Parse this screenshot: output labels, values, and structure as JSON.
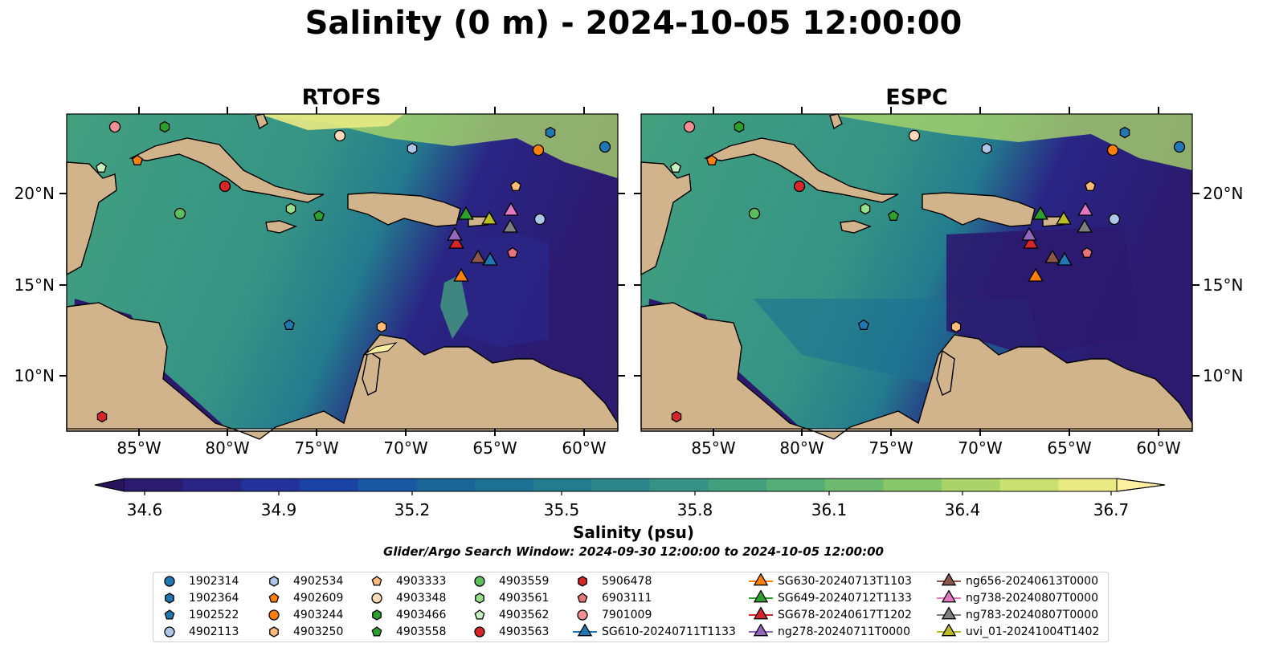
{
  "title": "Salinity (0 m) - 2024-10-05 12:00:00",
  "panels": [
    {
      "title": "RTOFS"
    },
    {
      "title": "ESPC"
    }
  ],
  "axes": {
    "x_ticks": [
      "85°W",
      "80°W",
      "75°W",
      "70°W",
      "65°W",
      "60°W"
    ],
    "y_ticks": [
      "20°N",
      "15°N",
      "10°N"
    ]
  },
  "colorbar": {
    "label": "Salinity (psu)",
    "ticks": [
      "34.6",
      "34.9",
      "35.2",
      "35.5",
      "35.8",
      "36.1",
      "36.4",
      "36.7"
    ],
    "colors": [
      "#2b1a6e",
      "#2a2585",
      "#23329a",
      "#1b43a6",
      "#1857a2",
      "#196597",
      "#1d7193",
      "#237b8e",
      "#2b8789",
      "#359385",
      "#43a07f",
      "#55ad77",
      "#6dba70",
      "#8ac76a",
      "#aad46a",
      "#cbe070",
      "#e8ea83"
    ],
    "min_color": "#27145c",
    "max_color": "#fbf0a0"
  },
  "search_window": "Glider/Argo Search Window: 2024-09-30 12:00:00 to 2024-10-05 12:00:00",
  "land_color": "#d2b48c",
  "legend": {
    "argo": [
      {
        "id": "1902314",
        "marker": "circle",
        "color": "#1f77b4"
      },
      {
        "id": "1902364",
        "marker": "hexagon",
        "color": "#1f77b4"
      },
      {
        "id": "1902522",
        "marker": "pentagon",
        "color": "#1f77b4"
      },
      {
        "id": "4902113",
        "marker": "circle",
        "color": "#aec7e8"
      },
      {
        "id": "4902534",
        "marker": "hexagon",
        "color": "#aec7e8"
      },
      {
        "id": "4902609",
        "marker": "pentagon",
        "color": "#ff7f0e"
      },
      {
        "id": "4903244",
        "marker": "circle",
        "color": "#ff7f0e"
      },
      {
        "id": "4903250",
        "marker": "hexagon",
        "color": "#ffbb78"
      },
      {
        "id": "4903333",
        "marker": "pentagon",
        "color": "#ffbb78"
      },
      {
        "id": "4903348",
        "marker": "circle",
        "color": "#ffdab9"
      },
      {
        "id": "4903466",
        "marker": "hexagon",
        "color": "#2ca02c"
      },
      {
        "id": "4903558",
        "marker": "pentagon",
        "color": "#2ca02c"
      },
      {
        "id": "4903559",
        "marker": "circle",
        "color": "#5cbf5c"
      },
      {
        "id": "4903561",
        "marker": "hexagon",
        "color": "#98df8a"
      },
      {
        "id": "4903562",
        "marker": "pentagon",
        "color": "#c7f0c0"
      },
      {
        "id": "4903563",
        "marker": "circle",
        "color": "#d62728"
      },
      {
        "id": "5906478",
        "marker": "hexagon",
        "color": "#d62728"
      },
      {
        "id": "6903111",
        "marker": "pentagon",
        "color": "#e8747c"
      },
      {
        "id": "7901009",
        "marker": "circle",
        "color": "#f09090"
      }
    ],
    "gliders": [
      {
        "id": "SG610-20240711T1133",
        "color": "#1f77b4"
      },
      {
        "id": "SG630-20240713T1103",
        "color": "#ff7f0e"
      },
      {
        "id": "SG649-20240712T1133",
        "color": "#2ca02c"
      },
      {
        "id": "SG678-20240617T1202",
        "color": "#d62728"
      },
      {
        "id": "ng278-20240711T0000",
        "color": "#9467bd"
      },
      {
        "id": "ng656-20240613T0000",
        "color": "#8c564b"
      },
      {
        "id": "ng738-20240807T0000",
        "color": "#e377c2"
      },
      {
        "id": "ng783-20240807T0000",
        "color": "#7f7f7f"
      },
      {
        "id": "uvi_01-20241004T1402",
        "color": "#bcbd22"
      }
    ]
  }
}
